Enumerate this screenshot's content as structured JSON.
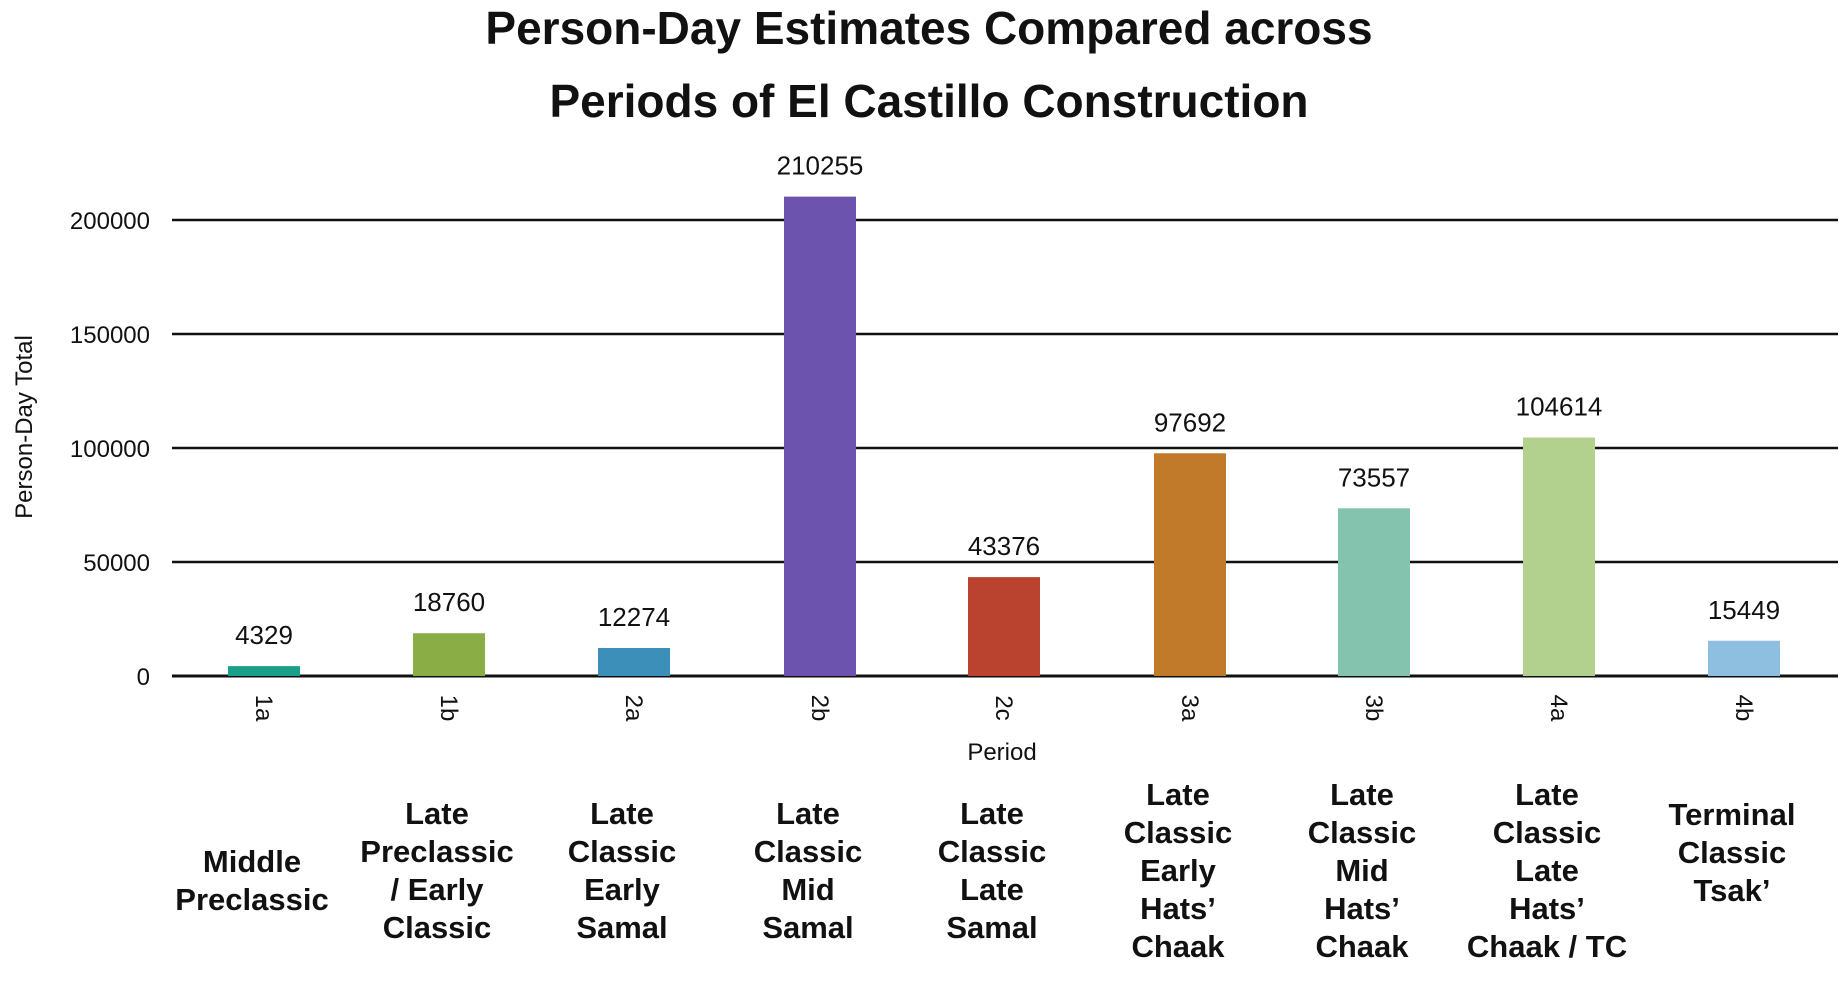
{
  "chart_data": {
    "type": "bar",
    "title_lines": [
      "Person-Day Estimates Compared across",
      "Periods of El Castillo Construction"
    ],
    "xlabel": "Period",
    "ylabel": "Person-Day Total",
    "ylim": [
      0,
      210000
    ],
    "yticks": [
      0,
      50000,
      100000,
      150000,
      200000
    ],
    "ytick_labels": [
      "0",
      "50000",
      "100000",
      "150000",
      "200000"
    ],
    "grid": true,
    "categories": [
      "1a",
      "1b",
      "2a",
      "2b",
      "2c",
      "3a",
      "3b",
      "4a",
      "4b"
    ],
    "values": [
      4329,
      18760,
      12274,
      210255,
      43376,
      97692,
      73557,
      104614,
      15449
    ],
    "value_labels": [
      "4329",
      "18760",
      "12274",
      "210255",
      "43376",
      "97692",
      "73557",
      "104614",
      "15449"
    ],
    "colors": [
      "#1aa08a",
      "#8aad45",
      "#3b8fb8",
      "#6c53ad",
      "#b9432f",
      "#c07a2a",
      "#84c3ad",
      "#b3d18e",
      "#8ebfe1"
    ],
    "period_descriptions": [
      [
        "Middle",
        "Preclassic"
      ],
      [
        "Late",
        "Preclassic",
        "/ Early",
        "Classic"
      ],
      [
        "Late",
        "Classic",
        "Early",
        "Samal"
      ],
      [
        "Late",
        "Classic",
        "Mid",
        "Samal"
      ],
      [
        "Late",
        "Classic",
        "Late",
        "Samal"
      ],
      [
        "Late",
        "Classic",
        "Early",
        "Hats’",
        "Chaak"
      ],
      [
        "Late",
        "Classic",
        "Mid",
        "Hats’",
        "Chaak"
      ],
      [
        "Late",
        "Classic",
        "Late",
        "Hats’",
        "Chaak / TC"
      ],
      [
        "Terminal",
        "Classic",
        "Tsak’"
      ]
    ]
  }
}
